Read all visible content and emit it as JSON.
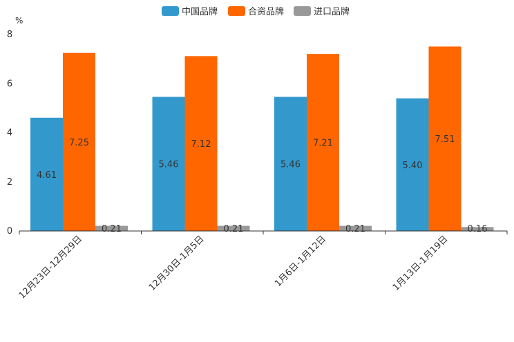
{
  "chart_data": {
    "type": "bar",
    "title": "",
    "xlabel": "",
    "ylabel": "%",
    "ylim": [
      0,
      8
    ],
    "yticks": [
      0,
      2,
      4,
      6,
      8
    ],
    "categories": [
      "12月23日-12月29日",
      "12月30日-1月5日",
      "1月6日-1月12日",
      "1月13日-1月19日"
    ],
    "series": [
      {
        "name": "中国品牌",
        "color": "#3399CC",
        "values": [
          4.61,
          5.46,
          5.46,
          5.4
        ]
      },
      {
        "name": "合资品牌",
        "color": "#FF6600",
        "values": [
          7.25,
          7.12,
          7.21,
          7.51
        ]
      },
      {
        "name": "进口品牌",
        "color": "#999999",
        "values": [
          0.21,
          0.21,
          0.21,
          0.16
        ]
      }
    ],
    "legend_position": "top-center",
    "grid": false
  }
}
